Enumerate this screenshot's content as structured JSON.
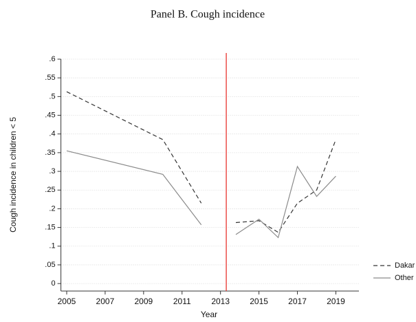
{
  "chart_data": {
    "type": "line",
    "title": "Panel B. Cough incidence",
    "x_label": "Year",
    "y_label": "Cough incidence in children < 5",
    "x": [
      2005,
      2010,
      2012,
      2013,
      2013.8,
      2015,
      2016,
      2017,
      2018,
      2019
    ],
    "series": [
      {
        "name": "Dakar",
        "color": "#333333",
        "dash": true,
        "values": [
          0.513,
          0.385,
          0.215,
          null,
          0.163,
          0.168,
          0.137,
          0.215,
          0.25,
          0.385
        ]
      },
      {
        "name": "Other",
        "color": "#8a8a8a",
        "dash": false,
        "values": [
          0.355,
          0.292,
          0.157,
          null,
          0.131,
          0.172,
          0.123,
          0.313,
          0.233,
          0.287
        ]
      }
    ],
    "xlim": [
      2004.7,
      2020.2
    ],
    "ylim": [
      -0.02,
      0.6
    ],
    "xticks": [
      2005,
      2007,
      2009,
      2011,
      2013,
      2015,
      2017,
      2019
    ],
    "yticks": [
      0,
      {
        "value": 0.05,
        "label": ".05"
      },
      {
        "value": 0.1,
        "label": ".1"
      },
      {
        "value": 0.15,
        "label": ".15"
      },
      {
        "value": 0.2,
        "label": ".2"
      },
      {
        "value": 0.25,
        "label": ".25"
      },
      {
        "value": 0.3,
        "label": ".3"
      },
      {
        "value": 0.35,
        "label": ".35"
      },
      {
        "value": 0.4,
        "label": ".4"
      },
      {
        "value": 0.45,
        "label": ".45"
      },
      {
        "value": 0.5,
        "label": ".5"
      },
      {
        "value": 0.55,
        "label": ".55"
      },
      {
        "value": 0.6,
        "label": ".6"
      }
    ],
    "grid": true,
    "vline": 2013.3,
    "vline_color": "#e8322d",
    "legend": "bottom-right"
  }
}
